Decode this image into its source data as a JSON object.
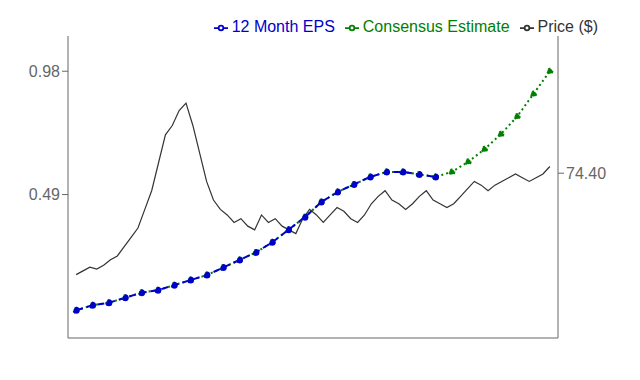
{
  "chart_data": {
    "type": "line",
    "xlim": [
      -0.5,
      29.5
    ],
    "xticks": [],
    "ylim": [
      -0.08,
      1.12
    ],
    "yticks": [
      0.49,
      0.98
    ],
    "y2lim": [
      -14,
      148
    ],
    "y2ticks": [
      {
        "value": 74.4,
        "label": "74.40"
      }
    ],
    "grid": false,
    "legend": "upper right",
    "series": [
      {
        "name": "Consensus Estimate",
        "color": "#008000",
        "line_style": "dotted",
        "marker": "circle",
        "x": [
          0,
          1,
          2,
          3,
          4,
          5,
          6,
          7,
          8,
          9,
          10,
          11,
          12,
          13,
          14,
          15,
          16,
          17,
          18,
          19,
          20,
          21,
          22,
          23,
          24,
          25,
          26,
          27,
          28,
          29
        ],
        "values": [
          0.03,
          0.05,
          0.06,
          0.08,
          0.1,
          0.11,
          0.13,
          0.15,
          0.17,
          0.2,
          0.23,
          0.26,
          0.3,
          0.35,
          0.4,
          0.46,
          0.5,
          0.53,
          0.56,
          0.58,
          0.58,
          0.57,
          0.56,
          0.58,
          0.62,
          0.67,
          0.73,
          0.8,
          0.89,
          0.98
        ]
      },
      {
        "name": "12 Month EPS",
        "color": "#0000cc",
        "line_style": "dashed",
        "marker": "circle",
        "x": [
          0,
          1,
          2,
          3,
          4,
          5,
          6,
          7,
          8,
          9,
          10,
          11,
          12,
          13,
          14,
          15,
          16,
          17,
          18,
          19,
          20,
          21,
          22
        ],
        "values": [
          0.03,
          0.05,
          0.06,
          0.08,
          0.1,
          0.11,
          0.13,
          0.15,
          0.17,
          0.2,
          0.23,
          0.26,
          0.3,
          0.35,
          0.4,
          0.46,
          0.5,
          0.53,
          0.56,
          0.58,
          0.58,
          0.57,
          0.56
        ]
      },
      {
        "name": "Price ($)",
        "color": "#333333",
        "line_style": "solid",
        "marker": "none",
        "axis": "y2",
        "x": [
          0,
          0.4203,
          0.8406,
          1.2609,
          1.6812,
          2.1014,
          2.5217,
          2.942,
          3.3623,
          3.7826,
          4.2029,
          4.6232,
          5.0435,
          5.4638,
          5.8841,
          6.3043,
          6.7246,
          7.1449,
          7.5652,
          7.9855,
          8.4058,
          8.8261,
          9.2464,
          9.6667,
          10.087,
          10.5072,
          10.9275,
          11.3478,
          11.7681,
          12.1884,
          12.6087,
          13.029,
          13.4493,
          13.8696,
          14.2899,
          14.7101,
          15.1304,
          15.5507,
          15.971,
          16.3913,
          16.8116,
          17.2319,
          17.6522,
          18.0725,
          18.4928,
          18.913,
          19.3333,
          19.7536,
          20.1739,
          20.5942,
          21.0145,
          21.4348,
          21.8551,
          22.2754,
          22.6957,
          23.1159,
          23.5362,
          23.9565,
          24.3768,
          24.7971,
          25.2174,
          25.6377,
          26.058,
          26.4783,
          26.8986,
          27.3188,
          27.7391,
          28.1594,
          28.5797,
          29
        ],
        "values": [
          20,
          22,
          24,
          23,
          25,
          28,
          30,
          35,
          40,
          45,
          55,
          65,
          80,
          95,
          100,
          108,
          112,
          100,
          85,
          70,
          60,
          55,
          52,
          48,
          50,
          46,
          44,
          52,
          48,
          50,
          46,
          44,
          42,
          50,
          55,
          52,
          48,
          52,
          56,
          54,
          50,
          48,
          52,
          58,
          62,
          65,
          60,
          58,
          55,
          58,
          62,
          65,
          60,
          58,
          56,
          58,
          62,
          66,
          70,
          68,
          65,
          68,
          70,
          72,
          74,
          72,
          70,
          72,
          74,
          78
        ]
      }
    ]
  }
}
